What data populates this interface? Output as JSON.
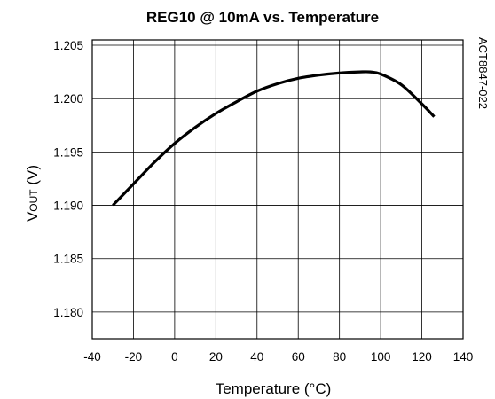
{
  "chart_data": {
    "type": "line",
    "title": "REG10 @ 10mA vs. Temperature",
    "xlabel": "Temperature (°C)",
    "ylabel_main": "V",
    "ylabel_sub": "OUT",
    "ylabel_unit": " (V)",
    "side_note": "ACT8847-022",
    "xlim": [
      -40,
      140
    ],
    "ylim": [
      1.1775,
      1.2055
    ],
    "x_ticks": [
      -40,
      -20,
      0,
      20,
      40,
      60,
      80,
      100,
      120,
      140
    ],
    "x_tick_labels": [
      "-40",
      "-20",
      "0",
      "20",
      "40",
      "60",
      "80",
      "100",
      "120",
      "140"
    ],
    "y_ticks": [
      1.18,
      1.185,
      1.19,
      1.195,
      1.2,
      1.205
    ],
    "y_tick_labels": [
      "1.180",
      "1.185",
      "1.190",
      "1.195",
      "1.200",
      "1.205"
    ],
    "grid": true,
    "series": [
      {
        "color": "#000000",
        "x": [
          -30,
          -20,
          -10,
          0,
          10,
          20,
          30,
          40,
          50,
          60,
          70,
          80,
          90,
          95,
          100,
          110,
          120,
          126
        ],
        "y": [
          1.19,
          1.192,
          1.194,
          1.1958,
          1.1973,
          1.1986,
          1.1997,
          1.2007,
          1.2014,
          1.2019,
          1.2022,
          1.2024,
          1.2025,
          1.2025,
          1.2023,
          1.2013,
          1.1995,
          1.1983
        ]
      }
    ]
  }
}
